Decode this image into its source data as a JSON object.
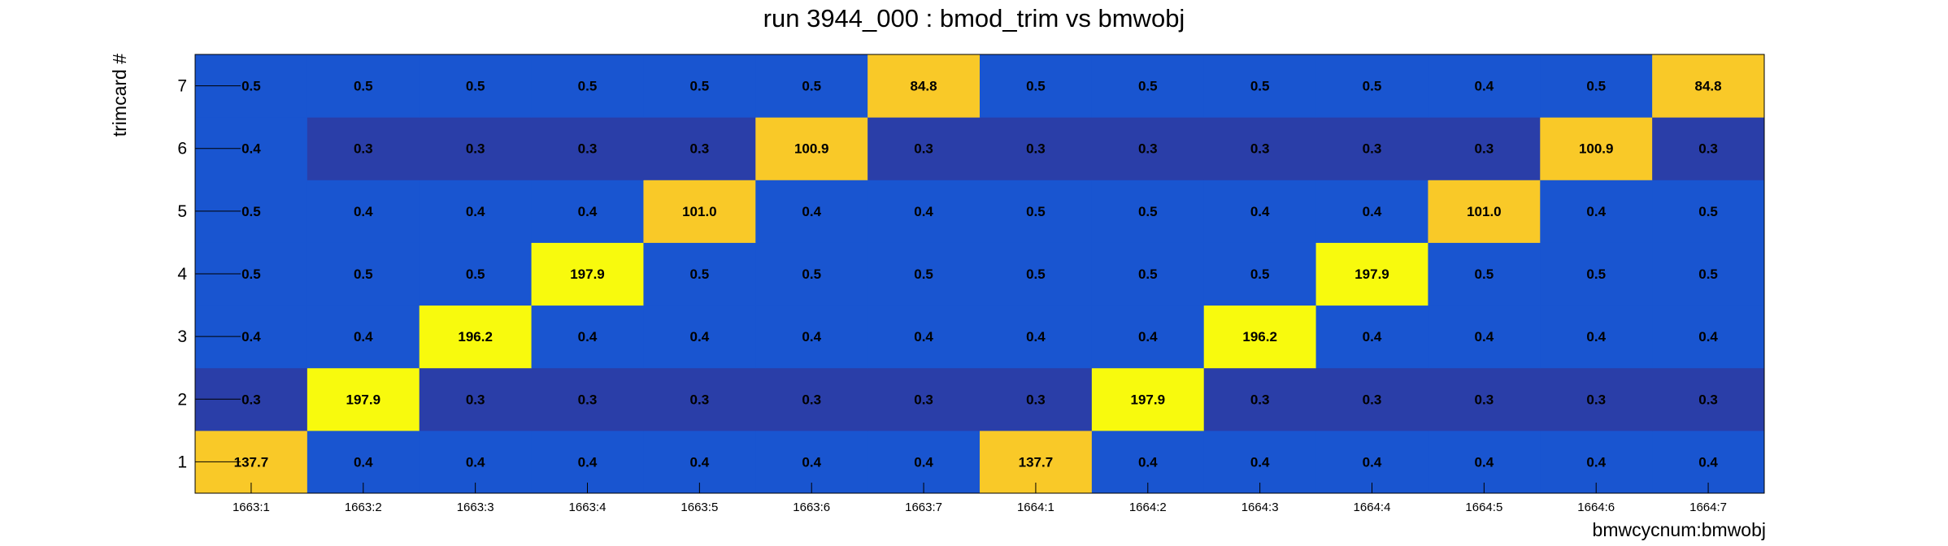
{
  "chart_data": {
    "type": "heatmap",
    "title": "run 3944_000 : bmod_trim vs bmwobj",
    "xlabel": "bmwcycnum:bmwobj",
    "ylabel": "trimcard #",
    "x_categories": [
      "1663:1",
      "1663:2",
      "1663:3",
      "1663:4",
      "1663:5",
      "1663:6",
      "1663:7",
      "1664:1",
      "1664:2",
      "1664:3",
      "1664:4",
      "1664:5",
      "1664:6",
      "1664:7"
    ],
    "y_categories": [
      "1",
      "2",
      "3",
      "4",
      "5",
      "6",
      "7"
    ],
    "values": [
      [
        "137.7",
        "0.4",
        "0.4",
        "0.4",
        "0.4",
        "0.4",
        "0.4",
        "137.7",
        "0.4",
        "0.4",
        "0.4",
        "0.4",
        "0.4",
        "0.4"
      ],
      [
        "0.3",
        "197.9",
        "0.3",
        "0.3",
        "0.3",
        "0.3",
        "0.3",
        "0.3",
        "197.9",
        "0.3",
        "0.3",
        "0.3",
        "0.3",
        "0.3"
      ],
      [
        "0.4",
        "0.4",
        "196.2",
        "0.4",
        "0.4",
        "0.4",
        "0.4",
        "0.4",
        "0.4",
        "196.2",
        "0.4",
        "0.4",
        "0.4",
        "0.4"
      ],
      [
        "0.5",
        "0.5",
        "0.5",
        "197.9",
        "0.5",
        "0.5",
        "0.5",
        "0.5",
        "0.5",
        "0.5",
        "197.9",
        "0.5",
        "0.5",
        "0.5"
      ],
      [
        "0.5",
        "0.4",
        "0.4",
        "0.4",
        "101.0",
        "0.4",
        "0.4",
        "0.5",
        "0.5",
        "0.4",
        "0.4",
        "101.0",
        "0.4",
        "0.5"
      ],
      [
        "0.4",
        "0.3",
        "0.3",
        "0.3",
        "0.3",
        "100.9",
        "0.3",
        "0.3",
        "0.3",
        "0.3",
        "0.3",
        "0.3",
        "100.9",
        "0.3"
      ],
      [
        "0.5",
        "0.5",
        "0.5",
        "0.5",
        "0.5",
        "0.5",
        "84.8",
        "0.5",
        "0.5",
        "0.5",
        "0.5",
        "0.4",
        "0.5",
        "84.8"
      ]
    ],
    "colors": {
      "low": "#2a3ea8",
      "low_mid": "#1955d0",
      "high_mid": "#f9c928",
      "high": "#f8fa0d"
    }
  }
}
